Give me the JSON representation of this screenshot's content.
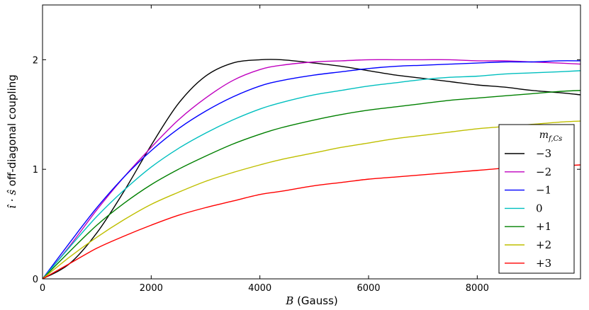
{
  "chart_data": {
    "type": "line",
    "xlabel_var": "B",
    "xlabel_unit": "(Gauss)",
    "ylabel_var": "î · ŝ",
    "ylabel_text": "off-diagonal coupling",
    "xlim": [
      0,
      9900
    ],
    "ylim": [
      0,
      2.5
    ],
    "x_ticks": [
      0,
      2000,
      4000,
      6000,
      8000
    ],
    "x_tick_labels": [
      "0",
      "2000",
      "4000",
      "6000",
      "8000"
    ],
    "y_ticks": [
      0,
      1,
      2
    ],
    "y_tick_labels": [
      "0",
      "1",
      "2"
    ],
    "grid": false,
    "legend_title_base": "m",
    "legend_title_sub": "f,Cs",
    "legend_position": "lower-right",
    "x": [
      0,
      500,
      1000,
      1500,
      2000,
      2500,
      3000,
      3500,
      4000,
      4400,
      5000,
      5500,
      6000,
      6500,
      7000,
      7500,
      8000,
      8500,
      9000,
      9500,
      9900
    ],
    "series": [
      {
        "name": "−3",
        "color": "#000000",
        "values": [
          0,
          0.14,
          0.42,
          0.8,
          1.22,
          1.6,
          1.85,
          1.97,
          2.0,
          2.0,
          1.97,
          1.94,
          1.9,
          1.86,
          1.83,
          1.8,
          1.77,
          1.75,
          1.72,
          1.7,
          1.68
        ]
      },
      {
        "name": "−2",
        "color": "#bf00bf",
        "values": [
          0,
          0.3,
          0.63,
          0.93,
          1.2,
          1.45,
          1.65,
          1.81,
          1.91,
          1.95,
          1.98,
          1.99,
          2.0,
          2.0,
          2.0,
          2.0,
          1.99,
          1.99,
          1.98,
          1.97,
          1.96
        ]
      },
      {
        "name": "−1",
        "color": "#0000ff",
        "values": [
          0,
          0.33,
          0.65,
          0.93,
          1.17,
          1.37,
          1.53,
          1.66,
          1.76,
          1.81,
          1.86,
          1.89,
          1.92,
          1.94,
          1.95,
          1.96,
          1.97,
          1.98,
          1.98,
          1.99,
          1.99
        ]
      },
      {
        "name": "0",
        "color": "#00bfbf",
        "values": [
          0,
          0.29,
          0.57,
          0.81,
          1.02,
          1.19,
          1.33,
          1.45,
          1.55,
          1.61,
          1.68,
          1.72,
          1.76,
          1.79,
          1.82,
          1.84,
          1.85,
          1.87,
          1.88,
          1.89,
          1.9
        ]
      },
      {
        "name": "+1",
        "color": "#008000",
        "values": [
          0,
          0.25,
          0.49,
          0.69,
          0.86,
          1.0,
          1.12,
          1.23,
          1.32,
          1.38,
          1.45,
          1.5,
          1.54,
          1.57,
          1.6,
          1.63,
          1.65,
          1.67,
          1.69,
          1.71,
          1.72
        ]
      },
      {
        "name": "+2",
        "color": "#bfbf00",
        "values": [
          0,
          0.2,
          0.38,
          0.54,
          0.68,
          0.79,
          0.89,
          0.97,
          1.04,
          1.09,
          1.15,
          1.2,
          1.24,
          1.28,
          1.31,
          1.34,
          1.37,
          1.39,
          1.41,
          1.43,
          1.44
        ]
      },
      {
        "name": "+3",
        "color": "#ff0000",
        "values": [
          0,
          0.14,
          0.28,
          0.39,
          0.49,
          0.58,
          0.65,
          0.71,
          0.77,
          0.8,
          0.85,
          0.88,
          0.91,
          0.93,
          0.95,
          0.97,
          0.99,
          1.01,
          1.02,
          1.03,
          1.04
        ]
      }
    ]
  }
}
